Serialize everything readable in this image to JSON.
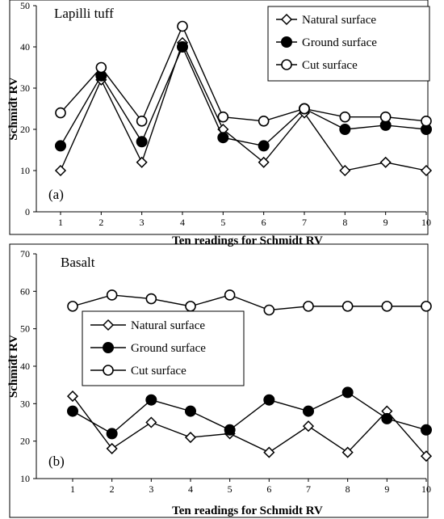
{
  "chart_data": [
    {
      "type": "line",
      "title": "Lapilli tuff",
      "panel_label": "(a)",
      "xlabel": "Ten readings for Schmidt RV",
      "ylabel": "Schmidt RV",
      "categories": [
        "1",
        "2",
        "3",
        "4",
        "5",
        "6",
        "7",
        "8",
        "9",
        "10"
      ],
      "ylim": [
        0,
        50
      ],
      "yticks": [
        0,
        10,
        20,
        30,
        40,
        50
      ],
      "grid": false,
      "legend_position": "top-right",
      "series": [
        {
          "name": "Natural surface",
          "marker": "diamond-open",
          "values": [
            10,
            32,
            12,
            41,
            20,
            12,
            24,
            10,
            12,
            10
          ]
        },
        {
          "name": "Ground surface",
          "marker": "circle-filled",
          "values": [
            16,
            33,
            17,
            40,
            18,
            16,
            25,
            20,
            21,
            20
          ]
        },
        {
          "name": "Cut surface",
          "marker": "circle-open",
          "values": [
            24,
            35,
            22,
            45,
            23,
            22,
            25,
            23,
            23,
            22
          ]
        }
      ]
    },
    {
      "type": "line",
      "title": "Basalt",
      "panel_label": "(b)",
      "xlabel": "Ten readings for Schmidt RV",
      "ylabel": "Schmidt RV",
      "categories": [
        "1",
        "2",
        "3",
        "4",
        "5",
        "6",
        "7",
        "8",
        "9",
        "10"
      ],
      "ylim": [
        10,
        70
      ],
      "yticks": [
        10,
        20,
        30,
        40,
        50,
        60,
        70
      ],
      "grid": false,
      "legend_position": "center-left",
      "series": [
        {
          "name": "Natural surface",
          "marker": "diamond-open",
          "values": [
            32,
            18,
            25,
            21,
            22,
            17,
            24,
            17,
            28,
            16
          ]
        },
        {
          "name": "Ground surface",
          "marker": "circle-filled",
          "values": [
            28,
            22,
            31,
            28,
            23,
            31,
            28,
            33,
            26,
            23
          ]
        },
        {
          "name": "Cut surface",
          "marker": "circle-open",
          "values": [
            56,
            59,
            58,
            56,
            59,
            55,
            56,
            56,
            56,
            56
          ]
        }
      ]
    }
  ]
}
